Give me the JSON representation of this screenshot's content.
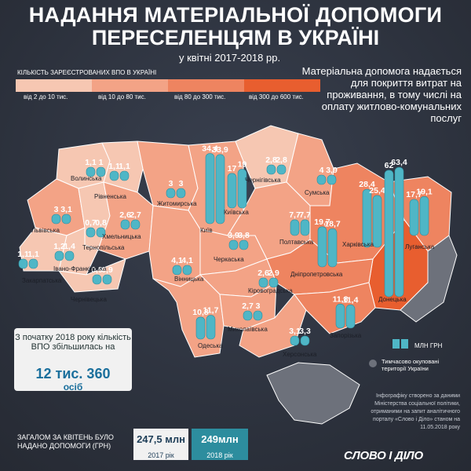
{
  "title_line1": "НАДАННЯ МАТЕРІАЛЬНОЇ ДОПОМОГИ",
  "title_line2": "ПЕРЕСЕЛЕНЦЯМ В УКРАЇНІ",
  "subtitle": "у квітні 2017-2018 рр.",
  "legend_title": "КІЛЬКІСТЬ ЗАРЕЄСТРОВАНИХ ВПО В УКРАЇНІ",
  "legend_items": [
    {
      "label": "від 2 до 10 тис.",
      "color": "#f6c7b2"
    },
    {
      "label": "від 10 до 80 тис.",
      "color": "#f3a386"
    },
    {
      "label": "від 80 до 300 тис.",
      "color": "#ee8460"
    },
    {
      "label": "від 300 до 600 тис.",
      "color": "#e85e2f"
    }
  ],
  "description": "Матеріальна допомога надається для покриття витрат на проживання, в тому числі на оплату житлово-комунальних послуг",
  "chart_data": {
    "type": "bar",
    "unit": "МЛН ГРН",
    "series_years": [
      "2017",
      "2018"
    ],
    "regions": [
      {
        "name": "Волинська",
        "v2017": 1.1,
        "v2018": 1,
        "color": "#f6c7b2"
      },
      {
        "name": "Рівненська",
        "v2017": 1.1,
        "v2018": 1.1,
        "color": "#f6c7b2"
      },
      {
        "name": "Житомирська",
        "v2017": 3,
        "v2018": 3,
        "color": "#f3a386"
      },
      {
        "name": "Київ",
        "v2017": 34.4,
        "v2018": 33.9,
        "color": "#ee8460"
      },
      {
        "name": "Київська",
        "v2017": 17,
        "v2018": 19,
        "color": "#f3a386"
      },
      {
        "name": "Чернігівська",
        "v2017": 2.8,
        "v2018": 2.8,
        "color": "#f6c7b2"
      },
      {
        "name": "Сумська",
        "v2017": 4,
        "v2018": 3.9,
        "color": "#f3a386"
      },
      {
        "name": "Львівська",
        "v2017": 3,
        "v2018": 3.1,
        "color": "#f3a386"
      },
      {
        "name": "Тернопільська",
        "v2017": 0.7,
        "v2018": 0.8,
        "color": "#f6c7b2"
      },
      {
        "name": "Хмельницька",
        "v2017": 2.6,
        "v2018": 2.7,
        "color": "#f3a386"
      },
      {
        "name": "Вінницька",
        "v2017": 4.1,
        "v2018": 4.1,
        "color": "#f3a386"
      },
      {
        "name": "Черкаська",
        "v2017": 3.9,
        "v2018": 3.8,
        "color": "#f3a386"
      },
      {
        "name": "Полтавська",
        "v2017": 7.7,
        "v2018": 7.7,
        "color": "#f3a386"
      },
      {
        "name": "Харківська",
        "v2017": 28.4,
        "v2018": 25.4,
        "color": "#ee8460"
      },
      {
        "name": "Луганська",
        "v2017": 17.7,
        "v2018": 19.1,
        "color": "#ee8460"
      },
      {
        "name": "Донецька",
        "v2017": 62,
        "v2018": 63.4,
        "color": "#e85e2f"
      },
      {
        "name": "Дніпропетровська",
        "v2017": 19.7,
        "v2018": 18.7,
        "color": "#ee8460"
      },
      {
        "name": "Кіровоградська",
        "v2017": 2.6,
        "v2018": 2.9,
        "color": "#f3a386"
      },
      {
        "name": "Закарпатська",
        "v2017": 1.1,
        "v2018": 1.1,
        "color": "#f6c7b2"
      },
      {
        "name": "Івано-Франківська",
        "v2017": 1.2,
        "v2018": 1.4,
        "color": "#f6c7b2"
      },
      {
        "name": "Чернівецька",
        "v2017": 0.9,
        "v2018": 0.9,
        "color": "#f6c7b2"
      },
      {
        "name": "Одеська",
        "v2017": 10.8,
        "v2018": 11.7,
        "color": "#f3a386"
      },
      {
        "name": "Миколаївська",
        "v2017": 2.7,
        "v2018": 3,
        "color": "#f3a386"
      },
      {
        "name": "Херсонська",
        "v2017": 3.1,
        "v2018": 3.3,
        "color": "#f3a386"
      },
      {
        "name": "Запорізька",
        "v2017": 11.8,
        "v2018": 11.4,
        "color": "#ee8460"
      }
    ]
  },
  "legend_mln": "МЛН ГРН",
  "legend_occupied": "Тимчасово окуповані території України",
  "info_text": "З початку 2018 року кількість ВПО збільшилась на",
  "info_big": "12 тис. 360",
  "info_unit": "осіб",
  "total_text": "ЗАГАЛОМ ЗА КВІТЕНЬ БУЛО НАДАНО ДОПОМОГИ (ГРН)",
  "total_2017_value": "247,5 млн",
  "total_2017_year": "2017 рік",
  "total_2018_value": "249млн",
  "total_2018_year": "2018 рік",
  "source_text": "Інфографіку створено за даними Міністерства соціальної політики, отриманими на запит аналітичного порталу «Слово і Діло» станом на 11.05.2018 року",
  "logo": "СЛОВО І ДІЛО",
  "colors": {
    "bar": "#4fb6c6",
    "bar_dark": "#2d8d9e",
    "occupied": "#6d717b"
  }
}
